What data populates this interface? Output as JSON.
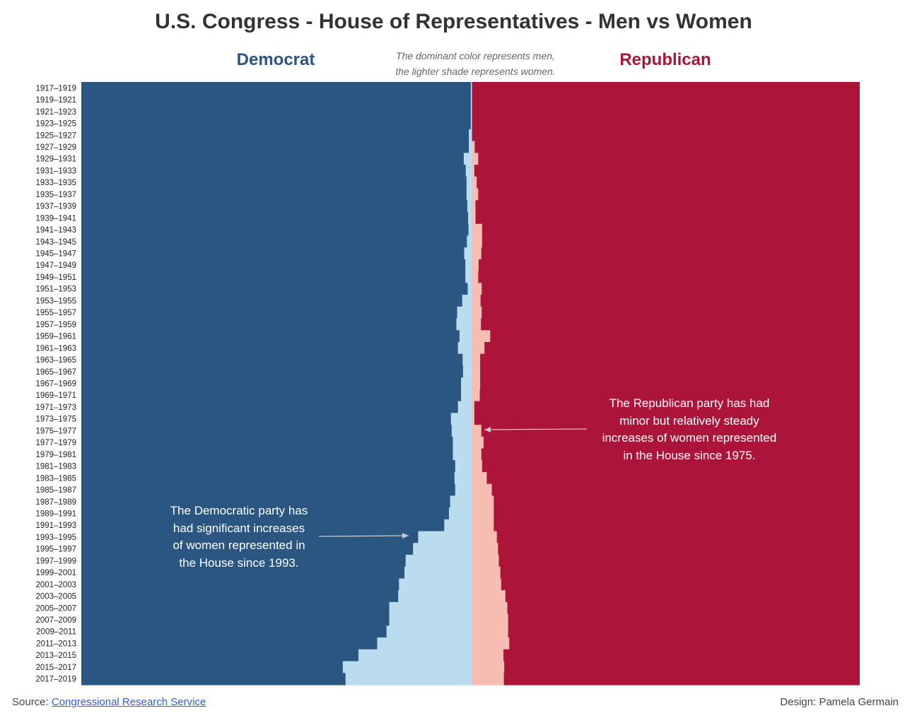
{
  "title": "U.S. Congress - House of Representatives - Men vs Women",
  "header": {
    "democrat_label": "Democrat",
    "republican_label": "Republican",
    "note_line1": "The dominant color represents men,",
    "note_line2": "the lighter shade represents women."
  },
  "colors": {
    "dem_men": "#2b5681",
    "dem_women": "#bbdcef",
    "rep_men": "#ad1439",
    "rep_women": "#f8bdb2",
    "text": "#333333",
    "ann_arrow": "#c8c8c8"
  },
  "chart_data": {
    "type": "bar",
    "orientation": "horizontal",
    "stacked": true,
    "categories": [
      "1917–1919",
      "1919–1921",
      "1921–1923",
      "1923–1925",
      "1925–1927",
      "1927–1929",
      "1929–1931",
      "1931–1933",
      "1933–1935",
      "1935–1937",
      "1937–1939",
      "1939–1941",
      "1941–1943",
      "1943–1945",
      "1945–1947",
      "1947–1949",
      "1949–1951",
      "1951–1953",
      "1953–1955",
      "1955–1957",
      "1957–1959",
      "1959–1961",
      "1961–1963",
      "1963–1965",
      "1965–1967",
      "1967–1969",
      "1969–1971",
      "1971–1973",
      "1973–1975",
      "1975–1977",
      "1977–1979",
      "1979–1981",
      "1981–1983",
      "1983–1985",
      "1985–1987",
      "1987–1989",
      "1989–1991",
      "1991–1993",
      "1993–1995",
      "1995–1997",
      "1997–1999",
      "1999–2001",
      "2001–2003",
      "2003–2005",
      "2005–2007",
      "2007–2009",
      "2009–2011",
      "2011–2013",
      "2013–2015",
      "2015–2017",
      "2017–2019"
    ],
    "series": [
      {
        "name": "Democrat",
        "side": "left",
        "women_share": [
          0.2,
          0.2,
          0.2,
          0.2,
          0.7,
          0.7,
          2.0,
          1.5,
          1.3,
          1.3,
          1.1,
          0.9,
          0.8,
          1.2,
          1.9,
          1.6,
          1.6,
          1.0,
          2.4,
          3.7,
          3.9,
          3.1,
          3.5,
          2.3,
          2.2,
          2.7,
          2.7,
          3.5,
          5.3,
          5.1,
          4.8,
          4.8,
          4.2,
          4.4,
          4.2,
          5.5,
          5.8,
          7.0,
          13.7,
          15.0,
          16.9,
          17.2,
          18.6,
          18.8,
          21.1,
          21.1,
          21.8,
          24.2,
          29.0,
          33.0,
          32.3
        ]
      },
      {
        "name": "Republican",
        "side": "right",
        "women_share": [
          0.2,
          0.2,
          0.2,
          0.2,
          0.2,
          0.9,
          1.8,
          0.8,
          1.4,
          1.8,
          1.1,
          1.1,
          2.8,
          2.8,
          2.6,
          1.9,
          1.8,
          2.7,
          2.4,
          2.7,
          2.5,
          4.9,
          3.4,
          2.3,
          2.3,
          2.3,
          2.2,
          0.8,
          0.8,
          2.6,
          3.2,
          2.6,
          2.8,
          4.0,
          5.3,
          5.8,
          5.8,
          5.8,
          6.6,
          6.9,
          7.1,
          7.5,
          7.7,
          8.8,
          9.3,
          9.5,
          9.5,
          9.8,
          8.3,
          8.5,
          8.4
        ]
      }
    ],
    "xlim": [
      0,
      100
    ],
    "annotations": [
      {
        "side": "left",
        "line1": "The Democratic party has",
        "line2": "had significant increases",
        "line3": "of women represented in",
        "line4": "the House since 1993."
      },
      {
        "side": "right",
        "line1": "The Republican party has had",
        "line2": "minor but relatively steady",
        "line3": "increases of women represented",
        "line4": "in the House since 1975."
      }
    ]
  },
  "footer": {
    "source_prefix": "Source: ",
    "source_link": "Congressional Research Service",
    "credit": "Design: Pamela Germain"
  }
}
